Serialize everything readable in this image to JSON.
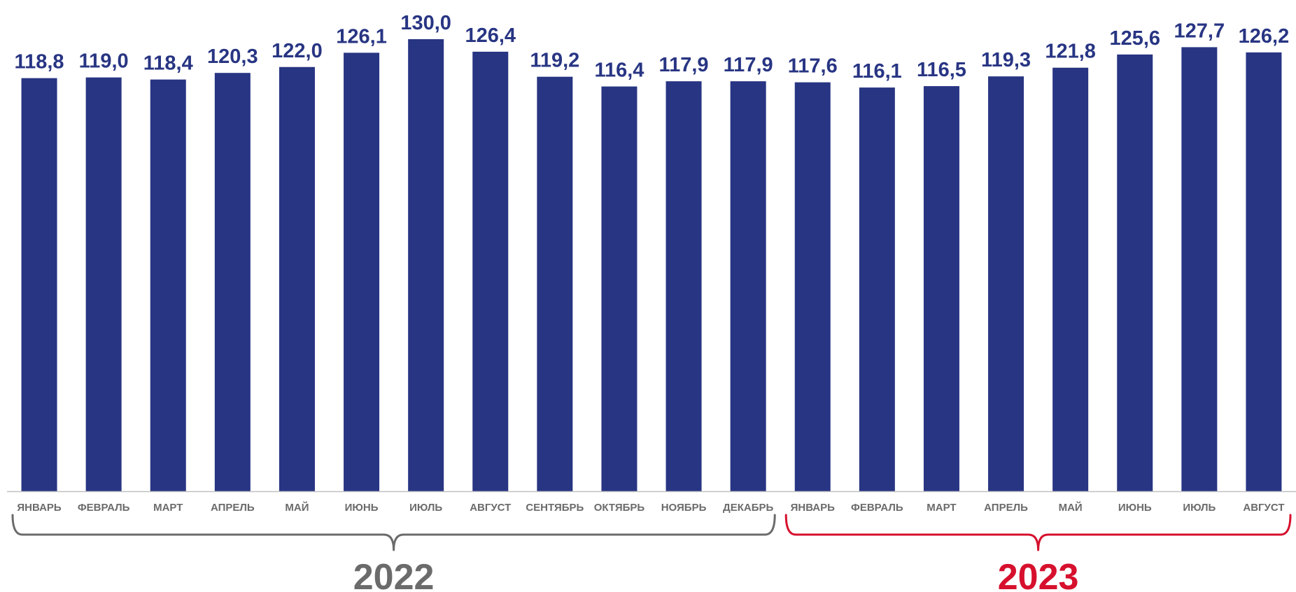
{
  "chart_data": {
    "type": "bar",
    "categories": [
      "ЯНВАРЬ",
      "ФЕВРАЛЬ",
      "МАРТ",
      "АПРЕЛЬ",
      "МАЙ",
      "ИЮНЬ",
      "ИЮЛЬ",
      "АВГУСТ",
      "СЕНТЯБРЬ",
      "ОКТЯБРЬ",
      "НОЯБРЬ",
      "ДЕКАБРЬ",
      "ЯНВАРЬ",
      "ФЕВРАЛЬ",
      "МАРТ",
      "АПРЕЛЬ",
      "МАЙ",
      "ИЮНЬ",
      "ИЮЛЬ",
      "АВГУСТ"
    ],
    "values": [
      118.8,
      119.0,
      118.4,
      120.3,
      122.0,
      126.1,
      130.0,
      126.4,
      119.2,
      116.4,
      117.9,
      117.9,
      117.6,
      116.1,
      116.5,
      119.3,
      121.8,
      125.6,
      127.7,
      126.2
    ],
    "value_labels": [
      "118,8",
      "119,0",
      "118,4",
      "120,3",
      "122,0",
      "126,1",
      "130,0",
      "126,4",
      "119,2",
      "116,4",
      "117,9",
      "117,9",
      "117,6",
      "116,1",
      "116,5",
      "119,3",
      "121,8",
      "125,6",
      "127,7",
      "126,2"
    ],
    "ylim": [
      0,
      130
    ],
    "grid": false,
    "legend": "none",
    "groups": [
      {
        "label": "2022",
        "start": 0,
        "end": 11,
        "color": "#6b6b6b"
      },
      {
        "label": "2023",
        "start": 12,
        "end": 19,
        "color": "#d6102d"
      }
    ],
    "colors": {
      "bar": "#283583",
      "value_label": "#283583",
      "axis": "#bfbfbf",
      "category_label": "#6b6b6b"
    }
  }
}
